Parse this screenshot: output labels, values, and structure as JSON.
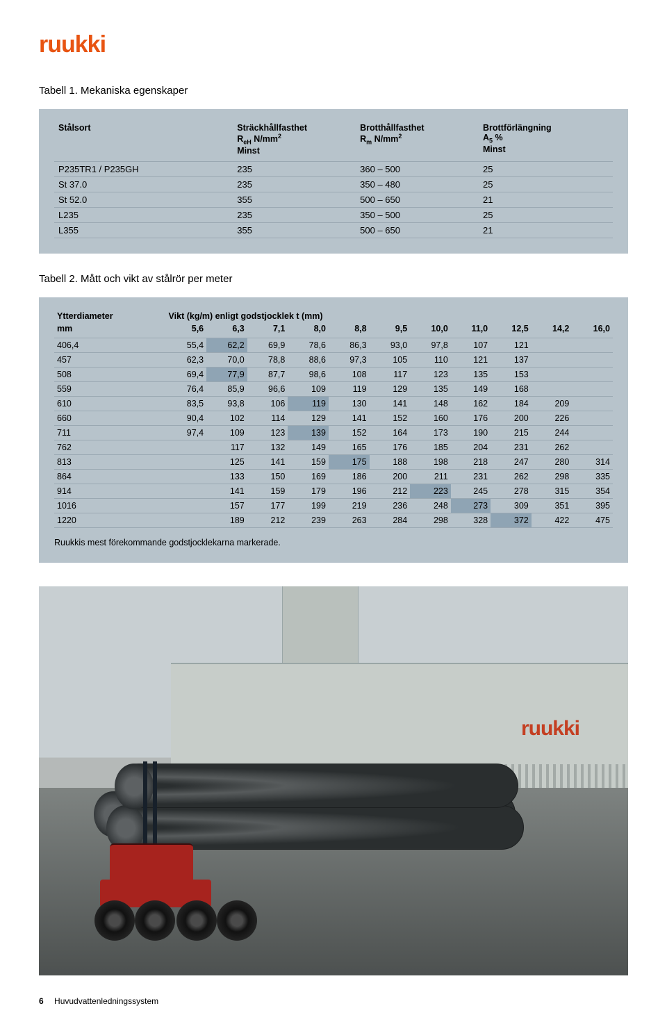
{
  "brand": {
    "name": "ruukki",
    "color": "#e85412"
  },
  "table1": {
    "caption": "Tabell 1. Mekaniska egenskaper",
    "headers": {
      "c1": "Stålsort",
      "c2a": "Sträckhållfasthet",
      "c2b": "R",
      "c2c": "eH",
      "c2d": " N/mm",
      "c2e": "2",
      "c2f": "Minst",
      "c3a": "Brotthållfasthet",
      "c3b": "R",
      "c3c": "m",
      "c3d": " N/mm",
      "c3e": "2",
      "c4a": "Brottförlängning",
      "c4b": "A",
      "c4c": "5",
      "c4d": " %",
      "c4e": "Minst"
    },
    "rows": [
      [
        "P235TR1 / P235GH",
        "235",
        "360 – 500",
        "25"
      ],
      [
        "St 37.0",
        "235",
        "350 – 480",
        "25"
      ],
      [
        "St 52.0",
        "355",
        "500 – 650",
        "21"
      ],
      [
        "L235",
        "235",
        "350 – 500",
        "25"
      ],
      [
        "L355",
        "355",
        "500 – 650",
        "21"
      ]
    ]
  },
  "table2": {
    "caption": "Tabell 2. Mått och vikt av stålrör per meter",
    "h1": "Ytterdiameter",
    "h1b": "mm",
    "h2": "Vikt (kg/m) enligt godstjocklek t (mm)",
    "thicknesses": [
      "5,6",
      "6,3",
      "7,1",
      "8,0",
      "8,8",
      "9,5",
      "10,0",
      "11,0",
      "12,5",
      "14,2",
      "16,0"
    ],
    "rows": [
      {
        "d": "406,4",
        "v": [
          "55,4",
          "62,2",
          "69,9",
          "78,6",
          "86,3",
          "93,0",
          "97,8",
          "107",
          "121",
          "",
          ""
        ],
        "hl": [
          1
        ]
      },
      {
        "d": "457",
        "v": [
          "62,3",
          "70,0",
          "78,8",
          "88,6",
          "97,3",
          "105",
          "110",
          "121",
          "137",
          "",
          ""
        ],
        "hl": []
      },
      {
        "d": "508",
        "v": [
          "69,4",
          "77,9",
          "87,7",
          "98,6",
          "108",
          "117",
          "123",
          "135",
          "153",
          "",
          ""
        ],
        "hl": [
          1
        ]
      },
      {
        "d": "559",
        "v": [
          "76,4",
          "85,9",
          "96,6",
          "109",
          "119",
          "129",
          "135",
          "149",
          "168",
          "",
          ""
        ],
        "hl": []
      },
      {
        "d": "610",
        "v": [
          "83,5",
          "93,8",
          "106",
          "119",
          "130",
          "141",
          "148",
          "162",
          "184",
          "209",
          ""
        ],
        "hl": [
          3
        ]
      },
      {
        "d": "660",
        "v": [
          "90,4",
          "102",
          "114",
          "129",
          "141",
          "152",
          "160",
          "176",
          "200",
          "226",
          ""
        ],
        "hl": []
      },
      {
        "d": "711",
        "v": [
          "97,4",
          "109",
          "123",
          "139",
          "152",
          "164",
          "173",
          "190",
          "215",
          "244",
          ""
        ],
        "hl": [
          3
        ]
      },
      {
        "d": "762",
        "v": [
          "",
          "117",
          "132",
          "149",
          "165",
          "176",
          "185",
          "204",
          "231",
          "262",
          ""
        ],
        "hl": []
      },
      {
        "d": "813",
        "v": [
          "",
          "125",
          "141",
          "159",
          "175",
          "188",
          "198",
          "218",
          "247",
          "280",
          "314"
        ],
        "hl": [
          4
        ]
      },
      {
        "d": "864",
        "v": [
          "",
          "133",
          "150",
          "169",
          "186",
          "200",
          "211",
          "231",
          "262",
          "298",
          "335"
        ],
        "hl": []
      },
      {
        "d": "914",
        "v": [
          "",
          "141",
          "159",
          "179",
          "196",
          "212",
          "223",
          "245",
          "278",
          "315",
          "354"
        ],
        "hl": [
          6
        ]
      },
      {
        "d": "1016",
        "v": [
          "",
          "157",
          "177",
          "199",
          "219",
          "236",
          "248",
          "273",
          "309",
          "351",
          "395"
        ],
        "hl": [
          7
        ]
      },
      {
        "d": "1220",
        "v": [
          "",
          "189",
          "212",
          "239",
          "263",
          "284",
          "298",
          "328",
          "372",
          "422",
          "475"
        ],
        "hl": [
          8
        ]
      }
    ],
    "note": "Ruukkis mest förekommande godstjocklekarna markerade."
  },
  "facade_sign": "ruukki",
  "footer": {
    "page": "6",
    "title": "Huvudvattenledningssystem"
  }
}
